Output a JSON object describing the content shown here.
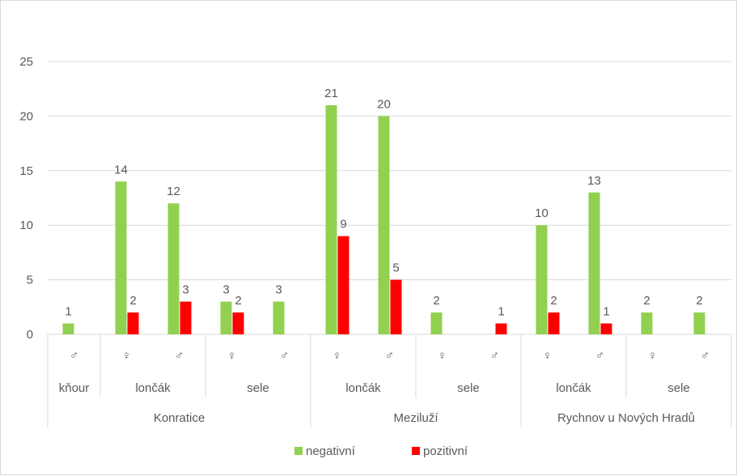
{
  "chart_data": {
    "type": "bar",
    "title": "",
    "xlabel": "",
    "ylabel": "",
    "ylim": [
      0,
      25
    ],
    "yticks": [
      0,
      5,
      10,
      15,
      20,
      25
    ],
    "grid": true,
    "legend_position": "bottom",
    "category_levels": {
      "sex": [
        "♂",
        "♀",
        "♂",
        "♀",
        "♂",
        "♀",
        "♂",
        "♀",
        "♂",
        "♀",
        "♂",
        "♀",
        "♂"
      ],
      "age": [
        {
          "label": "kňour",
          "span": 1
        },
        {
          "label": "lončák",
          "span": 2
        },
        {
          "label": "sele",
          "span": 2
        },
        {
          "label": "lončák",
          "span": 2
        },
        {
          "label": "sele",
          "span": 2
        },
        {
          "label": "lončák",
          "span": 2
        },
        {
          "label": "sele",
          "span": 2
        }
      ],
      "location": [
        {
          "label": "Konratice",
          "span": 5
        },
        {
          "label": "Meziluží",
          "span": 4
        },
        {
          "label": "Rychnov u Nových Hradů",
          "span": 4
        }
      ]
    },
    "series": [
      {
        "name": "negativní",
        "color": "#92d050",
        "values": [
          1,
          14,
          12,
          3,
          3,
          21,
          20,
          2,
          null,
          10,
          13,
          2,
          2
        ]
      },
      {
        "name": "pozitivní",
        "color": "#ff0000",
        "values": [
          null,
          2,
          3,
          2,
          null,
          9,
          5,
          null,
          1,
          2,
          1,
          null,
          null
        ]
      }
    ]
  }
}
